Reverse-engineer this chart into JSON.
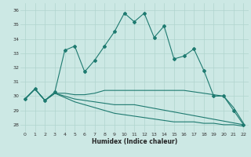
{
  "xlabel": "Humidex (Indice chaleur)",
  "bg_color": "#cce8e4",
  "grid_color": "#b0d4ce",
  "line_color": "#1e7a70",
  "xlim": [
    -0.5,
    22.5
  ],
  "ylim": [
    27.5,
    36.5
  ],
  "xticks": [
    0,
    1,
    2,
    3,
    4,
    5,
    6,
    7,
    8,
    9,
    10,
    11,
    12,
    13,
    14,
    15,
    16,
    17,
    18,
    19,
    20,
    21,
    22
  ],
  "yticks": [
    28,
    29,
    30,
    31,
    32,
    33,
    34,
    35,
    36
  ],
  "series1_x": [
    0,
    1,
    2,
    3,
    4,
    5,
    6,
    7,
    8,
    9,
    10,
    11,
    12,
    13,
    14,
    15,
    16,
    17,
    18,
    19,
    20,
    21,
    22
  ],
  "series1_y": [
    29.8,
    30.5,
    29.7,
    30.3,
    33.2,
    33.5,
    31.7,
    32.5,
    33.5,
    34.5,
    35.8,
    35.2,
    35.8,
    34.1,
    34.9,
    32.6,
    32.8,
    33.3,
    31.8,
    30.0,
    30.0,
    29.0,
    28.0
  ],
  "series2_x": [
    0,
    1,
    2,
    3,
    4,
    5,
    6,
    7,
    8,
    9,
    10,
    11,
    12,
    13,
    14,
    15,
    16,
    17,
    18,
    19,
    20,
    21,
    22
  ],
  "series2_y": [
    29.8,
    30.5,
    29.7,
    30.2,
    30.2,
    30.1,
    30.1,
    30.2,
    30.4,
    30.4,
    30.4,
    30.4,
    30.4,
    30.4,
    30.4,
    30.4,
    30.4,
    30.3,
    30.2,
    30.1,
    30.0,
    29.2,
    28.1
  ],
  "series3_x": [
    0,
    1,
    2,
    3,
    4,
    5,
    6,
    7,
    8,
    9,
    10,
    11,
    12,
    13,
    14,
    15,
    16,
    17,
    18,
    19,
    20,
    21,
    22
  ],
  "series3_y": [
    29.8,
    30.5,
    29.7,
    30.2,
    29.9,
    29.6,
    29.4,
    29.2,
    29.0,
    28.8,
    28.7,
    28.6,
    28.5,
    28.4,
    28.3,
    28.2,
    28.2,
    28.2,
    28.1,
    28.1,
    28.0,
    28.0,
    27.9
  ],
  "series4_x": [
    0,
    1,
    2,
    3,
    4,
    5,
    6,
    7,
    8,
    9,
    10,
    11,
    22
  ],
  "series4_y": [
    29.8,
    30.5,
    29.7,
    30.2,
    30.0,
    29.8,
    29.7,
    29.6,
    29.5,
    29.4,
    29.4,
    29.4,
    28.0
  ]
}
